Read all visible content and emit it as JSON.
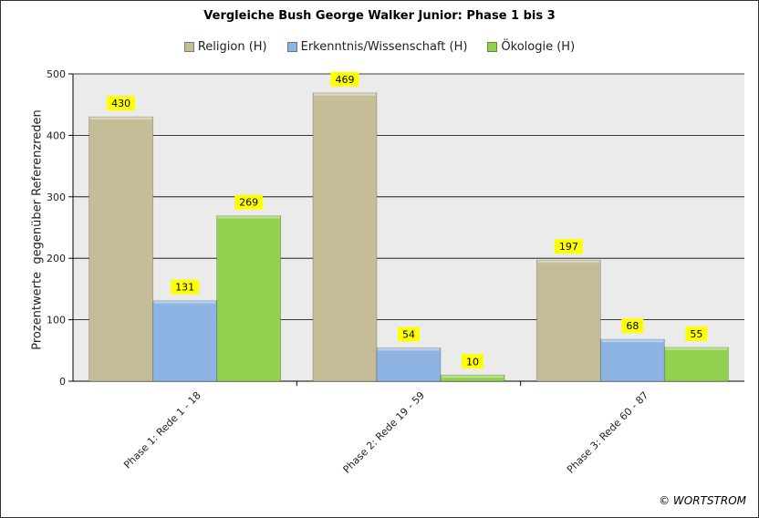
{
  "copyright": "© WORTSTROM",
  "chart_data": {
    "type": "bar",
    "title": "Vergleiche Bush George Walker Junior: Phase 1 bis 3",
    "xlabel": "",
    "ylabel": "Prozentwerte  gegenüber Referenzreden",
    "ylim": [
      0,
      500
    ],
    "yticks": [
      0,
      100,
      200,
      300,
      400,
      500
    ],
    "grid": true,
    "legend_position": "top",
    "categories": [
      "Phase 1: Rede 1 - 18",
      "Phase 2: Rede 19 - 59",
      "Phase 3: Rede 60 - 87"
    ],
    "series": [
      {
        "name": "Religion (H)",
        "color": "#C4BD97",
        "values": [
          430,
          469,
          197
        ]
      },
      {
        "name": "Erkenntnis/Wissenschaft (H)",
        "color": "#8DB4E2",
        "values": [
          131,
          54,
          68
        ]
      },
      {
        "name": "Ökologie (H)",
        "color": "#92D050",
        "values": [
          269,
          10,
          55
        ]
      }
    ],
    "data_label_style": {
      "background": "#FFFF00"
    }
  }
}
